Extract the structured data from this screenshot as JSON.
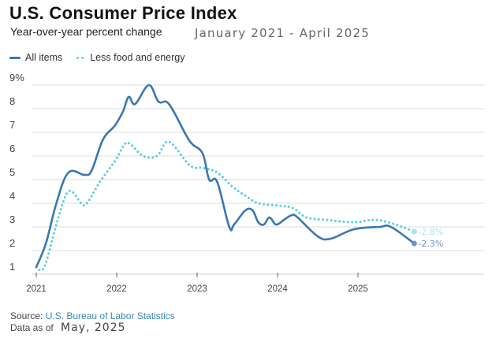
{
  "header": {
    "title": "U.S. Consumer Price Index",
    "subtitle": "Year-over-year percent change",
    "date_range": "January 2021 - April 2025"
  },
  "footer": {
    "source_prefix": "Source:",
    "source_link": "U.S. Bureau of Labor Statistics",
    "data_as_of_label": "Data as of",
    "data_as_of_value": "May, 2025"
  },
  "colors": {
    "all_items": "#3a77b0",
    "core": "#5ccfe0",
    "grid": "#dcdcdc",
    "axis_text": "#444444"
  },
  "chart_data": {
    "type": "line",
    "title": "U.S. Consumer Price Index",
    "subtitle": "Year-over-year percent change",
    "xlabel": "",
    "ylabel": "",
    "xlim": [
      2021,
      2026.5
    ],
    "ylim": [
      1,
      9
    ],
    "x_ticks": [
      2021,
      2022,
      2023,
      2024,
      2025
    ],
    "x_tick_labels": [
      "2021",
      "2022",
      "2023",
      "2024",
      "2025"
    ],
    "y_ticks": [
      1,
      2,
      3,
      4,
      5,
      6,
      7,
      8,
      9
    ],
    "y_tick_labels": [
      "1",
      "2",
      "3",
      "4",
      "5",
      "6",
      "7",
      "8",
      "9%"
    ],
    "grid": true,
    "legend_position": "top-left",
    "series": [
      {
        "name": "All items",
        "style": "solid",
        "end_label": "2.3%",
        "x": [
          2021.0,
          2021.12,
          2021.25,
          2021.4,
          2021.6,
          2021.69,
          2021.83,
          2021.98,
          2022.08,
          2022.15,
          2022.23,
          2022.4,
          2022.52,
          2022.65,
          2022.86,
          2022.94,
          2023.07,
          2023.15,
          2023.25,
          2023.4,
          2023.46,
          2023.6,
          2023.69,
          2023.76,
          2023.83,
          2023.9,
          2023.98,
          2024.08,
          2024.18,
          2024.25,
          2024.5,
          2024.66,
          2024.95,
          2025.27,
          2025.41,
          2025.7
        ],
        "values": [
          1.3,
          2.3,
          4.0,
          5.3,
          5.2,
          5.4,
          6.7,
          7.3,
          7.9,
          8.5,
          8.2,
          9.0,
          8.3,
          8.2,
          6.9,
          6.5,
          6.1,
          5.0,
          4.9,
          3.0,
          3.1,
          3.7,
          3.7,
          3.2,
          3.1,
          3.4,
          3.1,
          3.3,
          3.5,
          3.4,
          2.6,
          2.5,
          2.9,
          3.0,
          3.0,
          2.3
        ]
      },
      {
        "name": "Less food and energy",
        "style": "dotted",
        "end_label": "2.8%",
        "x": [
          2021.0,
          2021.1,
          2021.25,
          2021.4,
          2021.56,
          2021.63,
          2021.79,
          2021.98,
          2022.1,
          2022.17,
          2022.33,
          2022.5,
          2022.65,
          2022.91,
          2023.07,
          2023.25,
          2023.44,
          2023.61,
          2023.76,
          2024.02,
          2024.19,
          2024.36,
          2024.6,
          2024.95,
          2025.21,
          2025.47,
          2025.7
        ],
        "values": [
          1.3,
          1.3,
          3.1,
          4.5,
          4.0,
          4.0,
          4.9,
          5.8,
          6.5,
          6.5,
          6.0,
          6.0,
          6.6,
          5.6,
          5.5,
          5.3,
          4.7,
          4.3,
          4.0,
          3.9,
          3.8,
          3.4,
          3.3,
          3.2,
          3.3,
          3.1,
          2.8
        ]
      }
    ]
  }
}
